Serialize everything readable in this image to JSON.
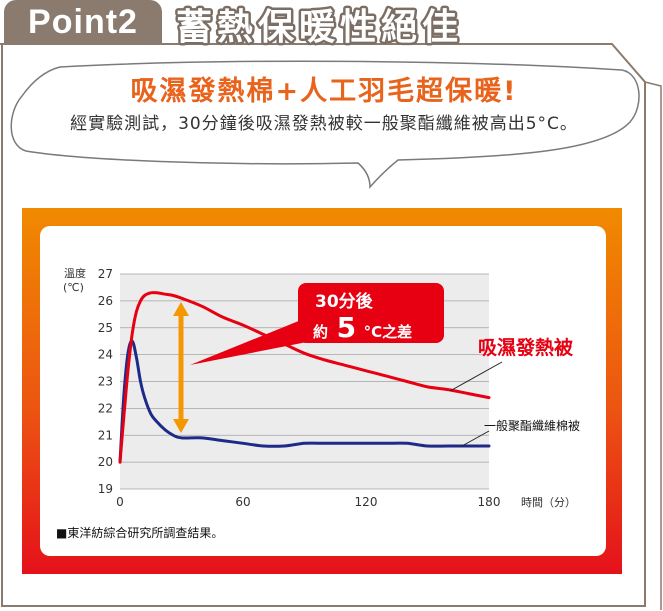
{
  "header": {
    "badge": "Point2",
    "title": "蓄熱保暖性絕佳"
  },
  "bubble": {
    "headline": "吸濕發熱棉+人工羽毛超保暖!",
    "body": "經實驗測試，30分鐘後吸濕發熱被較一般聚酯纖維被高出5°C。"
  },
  "colors": {
    "frame": "#8a7b6e",
    "title_stroke": "#7b6e64",
    "bubble_line": "#7a7a7a",
    "headline": "#e8631c",
    "panel_top": "#f08a00",
    "panel_bottom": "#e5111b",
    "annotation": "#e60012",
    "arrow": "#f39800"
  },
  "chart_data": {
    "type": "line",
    "ylabel": "溫度",
    "ylabel_unit": "(℃)",
    "xlabel": "時間（分）",
    "xlim": [
      0,
      180
    ],
    "ylim": [
      19,
      27
    ],
    "xticks": [
      0,
      60,
      120,
      180
    ],
    "yticks": [
      27,
      26,
      25,
      24,
      23,
      22,
      21,
      20,
      19
    ],
    "grid": true,
    "x": [
      0,
      2,
      4,
      6,
      8,
      10,
      12,
      15,
      18,
      22,
      26,
      30,
      40,
      50,
      60,
      70,
      80,
      90,
      100,
      110,
      120,
      130,
      140,
      150,
      160,
      170,
      180
    ],
    "series": [
      {
        "name": "吸濕發熱被",
        "color": "#e60012",
        "values": [
          20.0,
          21.8,
          23.5,
          24.8,
          25.6,
          26.0,
          26.2,
          26.3,
          26.3,
          26.25,
          26.2,
          26.1,
          25.8,
          25.4,
          25.1,
          24.75,
          24.4,
          24.05,
          23.8,
          23.6,
          23.4,
          23.2,
          23.0,
          22.8,
          22.7,
          22.55,
          22.4
        ]
      },
      {
        "name": "一般聚酯纖維棉被",
        "color": "#1d2a87",
        "values": [
          20.0,
          22.6,
          24.1,
          24.5,
          23.9,
          23.0,
          22.4,
          21.8,
          21.5,
          21.2,
          21.0,
          20.9,
          20.9,
          20.8,
          20.7,
          20.6,
          20.6,
          20.7,
          20.7,
          20.7,
          20.7,
          20.7,
          20.7,
          20.6,
          20.6,
          20.6,
          20.6
        ]
      }
    ],
    "annotation": {
      "line1": "30分後",
      "prefix": "約",
      "number": "5",
      "suffix": "°C之差"
    },
    "note": "■東洋紡綜合研究所調查結果。"
  }
}
